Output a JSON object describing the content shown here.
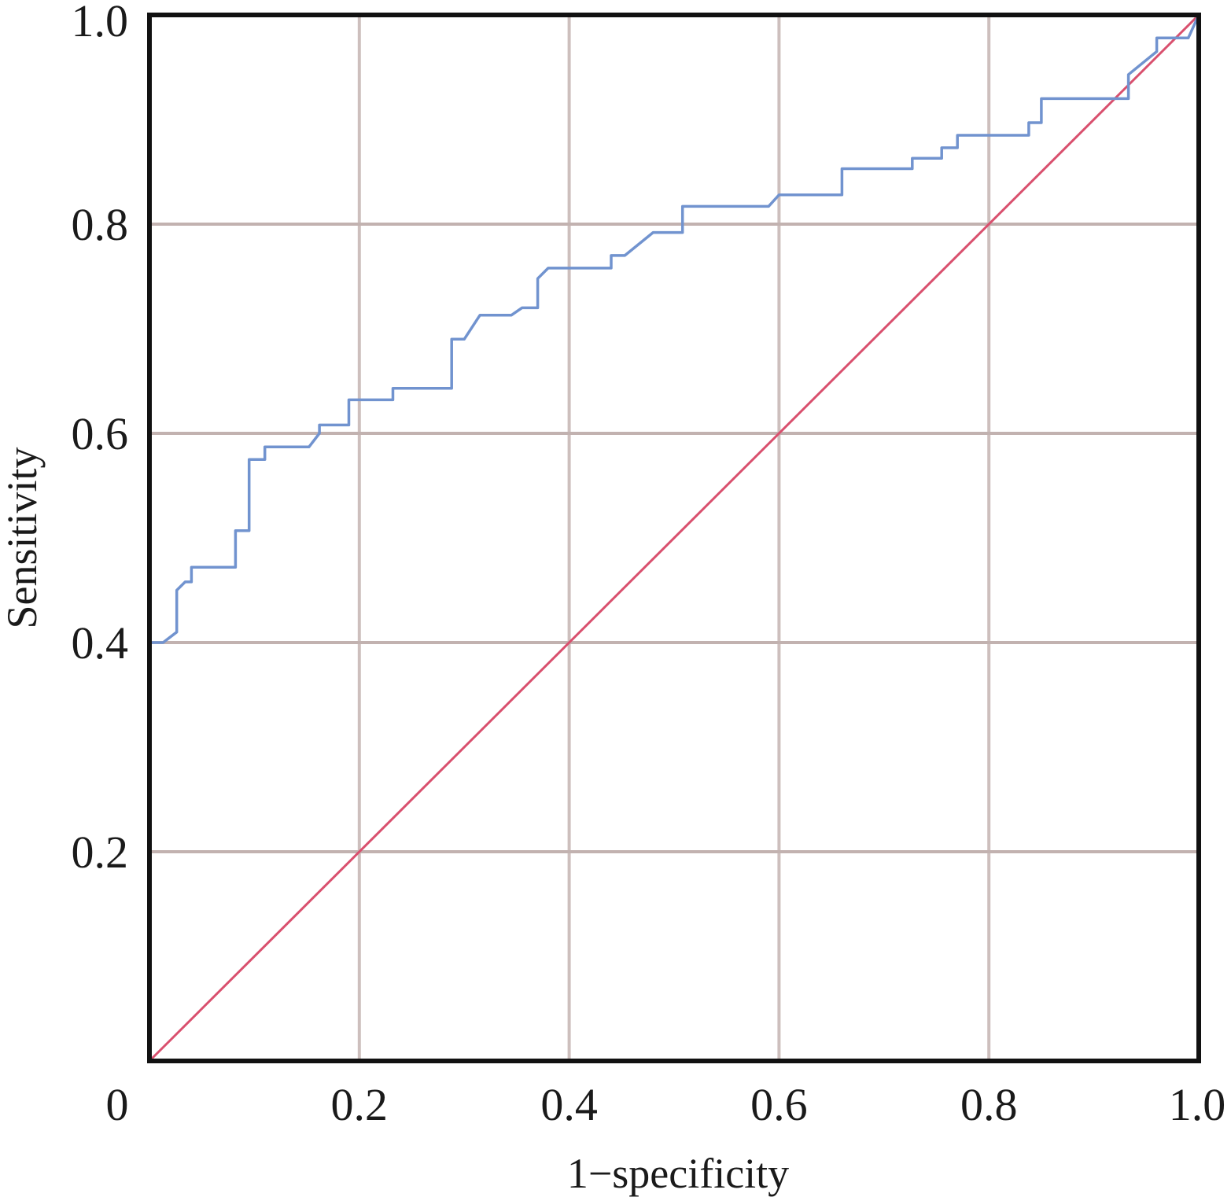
{
  "chart_data": {
    "type": "line",
    "title": "",
    "xlabel": "1−specificity",
    "ylabel": "Sensitivity",
    "xlim": [
      0,
      1.0
    ],
    "ylim": [
      0,
      1.0
    ],
    "grid": true,
    "x_ticks": [
      {
        "value": 0,
        "label": "0"
      },
      {
        "value": 0.2,
        "label": "0.2"
      },
      {
        "value": 0.4,
        "label": "0.4"
      },
      {
        "value": 0.6,
        "label": "0.6"
      },
      {
        "value": 0.8,
        "label": "0.8"
      },
      {
        "value": 1.0,
        "label": "1.0"
      }
    ],
    "y_ticks": [
      {
        "value": 0.2,
        "label": "0.2"
      },
      {
        "value": 0.4,
        "label": "0.4"
      },
      {
        "value": 0.6,
        "label": "0.6"
      },
      {
        "value": 0.8,
        "label": "0.8"
      },
      {
        "value": 1.0,
        "label": "1.0"
      }
    ],
    "colors": {
      "roc": "#7193cf",
      "reference": "#d9506e",
      "grid_x": "#cdbfbd",
      "grid_y": "#c2b2b0",
      "frame": "#111111"
    },
    "series": [
      {
        "x": [
          0.0,
          0.013,
          0.026,
          0.026,
          0.034,
          0.04,
          0.04,
          0.082,
          0.082,
          0.095,
          0.095,
          0.11,
          0.11,
          0.152,
          0.162,
          0.162,
          0.19,
          0.19,
          0.232,
          0.232,
          0.288,
          0.288,
          0.3,
          0.315,
          0.345,
          0.355,
          0.37,
          0.37,
          0.38,
          0.44,
          0.44,
          0.453,
          0.48,
          0.508,
          0.508,
          0.59,
          0.6,
          0.66,
          0.66,
          0.727,
          0.727,
          0.755,
          0.755,
          0.77,
          0.77,
          0.838,
          0.838,
          0.85,
          0.85,
          0.933,
          0.933,
          0.96,
          0.96,
          0.99,
          1.0
        ],
        "y": [
          0.4,
          0.4,
          0.41,
          0.45,
          0.458,
          0.458,
          0.472,
          0.472,
          0.507,
          0.507,
          0.575,
          0.575,
          0.587,
          0.587,
          0.6,
          0.608,
          0.608,
          0.632,
          0.632,
          0.643,
          0.643,
          0.69,
          0.69,
          0.713,
          0.713,
          0.72,
          0.72,
          0.748,
          0.758,
          0.758,
          0.77,
          0.77,
          0.792,
          0.792,
          0.817,
          0.817,
          0.828,
          0.828,
          0.853,
          0.853,
          0.863,
          0.863,
          0.873,
          0.873,
          0.885,
          0.885,
          0.897,
          0.897,
          0.92,
          0.92,
          0.943,
          0.965,
          0.978,
          0.978,
          1.0
        ]
      },
      {
        "x": [
          0,
          1.0
        ],
        "y": [
          0,
          1.0
        ]
      }
    ]
  }
}
